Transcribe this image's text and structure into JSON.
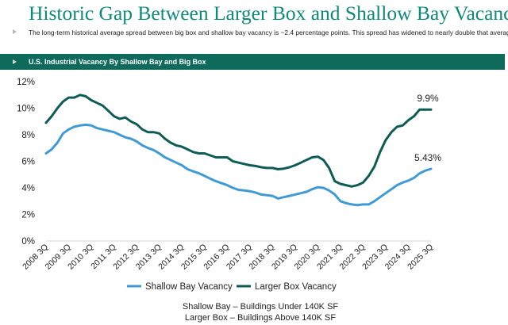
{
  "page": {
    "title": "Historic Gap Between Larger Box and Shallow Bay Vacancy",
    "subtitle": "The long-term historical average spread between big box and shallow bay vacancy is ~2.4 percentage points. This spread has widened to nearly double that average.",
    "chart_header": "U.S. Industrial Vacancy By Shallow Bay and Big Box",
    "footnotes": [
      "Shallow Bay – Buildings Under 140K SF",
      "Larger Box – Buildings Above 140K SF"
    ],
    "colors": {
      "title": "#0e8a7a",
      "header_bg": "#0e6b5c",
      "shallow_bay": "#3f9ad6",
      "larger_box": "#0e5c55"
    }
  },
  "chart_data": {
    "type": "line",
    "title": "U.S. Industrial Vacancy By Shallow Bay and Big Box",
    "xlabel": "",
    "ylabel": "",
    "ylim": [
      0,
      12
    ],
    "yticks": [
      0,
      2,
      4,
      6,
      8,
      10,
      12
    ],
    "ytick_labels": [
      "0%",
      "2%",
      "4%",
      "6%",
      "8%",
      "10%",
      "12%"
    ],
    "x_range": [
      2008.5,
      2025.5
    ],
    "x_tick_labels": [
      "2008 3Q",
      "2009 3Q",
      "2010 3Q",
      "2011 3Q",
      "2012 3Q",
      "2013 3Q",
      "2014 3Q",
      "2015 3Q",
      "2016 3Q",
      "2017 3Q",
      "2018 3Q",
      "2019 3Q",
      "2020 3Q",
      "2021 3Q",
      "2022 3Q",
      "2023 3Q",
      "2024 3Q",
      "2025 3Q"
    ],
    "grid": false,
    "legend": "bottom",
    "annotations": [
      {
        "series": "Larger Box Vacancy",
        "label": "9.9%",
        "x": 2025.5,
        "y": 9.9
      },
      {
        "series": "Shallow Bay Vacancy",
        "label": "5.43%",
        "x": 2025.5,
        "y": 5.43
      }
    ],
    "series": [
      {
        "name": "Shallow Bay Vacancy",
        "color": "#3f9ad6",
        "points": [
          [
            2008.5,
            6.6
          ],
          [
            2008.75,
            6.9
          ],
          [
            2009.0,
            7.4
          ],
          [
            2009.25,
            8.1
          ],
          [
            2009.5,
            8.4
          ],
          [
            2009.75,
            8.6
          ],
          [
            2010.0,
            8.7
          ],
          [
            2010.25,
            8.75
          ],
          [
            2010.5,
            8.7
          ],
          [
            2010.75,
            8.5
          ],
          [
            2011.0,
            8.4
          ],
          [
            2011.25,
            8.3
          ],
          [
            2011.5,
            8.2
          ],
          [
            2011.75,
            8.0
          ],
          [
            2012.0,
            7.8
          ],
          [
            2012.25,
            7.7
          ],
          [
            2012.5,
            7.5
          ],
          [
            2012.75,
            7.2
          ],
          [
            2013.0,
            7.0
          ],
          [
            2013.25,
            6.85
          ],
          [
            2013.5,
            6.6
          ],
          [
            2013.75,
            6.3
          ],
          [
            2014.0,
            6.1
          ],
          [
            2014.25,
            5.9
          ],
          [
            2014.5,
            5.7
          ],
          [
            2014.75,
            5.4
          ],
          [
            2015.0,
            5.25
          ],
          [
            2015.25,
            5.1
          ],
          [
            2015.5,
            4.9
          ],
          [
            2015.75,
            4.7
          ],
          [
            2016.0,
            4.5
          ],
          [
            2016.25,
            4.35
          ],
          [
            2016.5,
            4.2
          ],
          [
            2016.75,
            4.0
          ],
          [
            2017.0,
            3.85
          ],
          [
            2017.25,
            3.8
          ],
          [
            2017.5,
            3.75
          ],
          [
            2017.75,
            3.65
          ],
          [
            2018.0,
            3.5
          ],
          [
            2018.25,
            3.45
          ],
          [
            2018.5,
            3.4
          ],
          [
            2018.75,
            3.2
          ],
          [
            2019.0,
            3.3
          ],
          [
            2019.25,
            3.4
          ],
          [
            2019.5,
            3.5
          ],
          [
            2019.75,
            3.6
          ],
          [
            2020.0,
            3.7
          ],
          [
            2020.25,
            3.9
          ],
          [
            2020.5,
            4.05
          ],
          [
            2020.75,
            4.0
          ],
          [
            2021.0,
            3.8
          ],
          [
            2021.25,
            3.5
          ],
          [
            2021.5,
            3.0
          ],
          [
            2021.75,
            2.85
          ],
          [
            2022.0,
            2.75
          ],
          [
            2022.25,
            2.7
          ],
          [
            2022.5,
            2.75
          ],
          [
            2022.75,
            2.75
          ],
          [
            2023.0,
            3.0
          ],
          [
            2023.25,
            3.3
          ],
          [
            2023.5,
            3.6
          ],
          [
            2023.75,
            3.9
          ],
          [
            2024.0,
            4.2
          ],
          [
            2024.25,
            4.4
          ],
          [
            2024.5,
            4.55
          ],
          [
            2024.75,
            4.75
          ],
          [
            2025.0,
            5.1
          ],
          [
            2025.25,
            5.3
          ],
          [
            2025.5,
            5.43
          ]
        ]
      },
      {
        "name": "Larger Box Vacancy",
        "color": "#0e5c55",
        "points": [
          [
            2008.5,
            8.9
          ],
          [
            2008.75,
            9.4
          ],
          [
            2009.0,
            10.0
          ],
          [
            2009.25,
            10.5
          ],
          [
            2009.5,
            10.8
          ],
          [
            2009.75,
            10.8
          ],
          [
            2010.0,
            11.0
          ],
          [
            2010.25,
            10.9
          ],
          [
            2010.5,
            10.6
          ],
          [
            2010.75,
            10.4
          ],
          [
            2011.0,
            10.2
          ],
          [
            2011.25,
            9.8
          ],
          [
            2011.5,
            9.4
          ],
          [
            2011.75,
            9.2
          ],
          [
            2012.0,
            9.3
          ],
          [
            2012.25,
            9.0
          ],
          [
            2012.5,
            8.8
          ],
          [
            2012.75,
            8.4
          ],
          [
            2013.0,
            8.2
          ],
          [
            2013.25,
            8.2
          ],
          [
            2013.5,
            8.1
          ],
          [
            2013.75,
            7.7
          ],
          [
            2014.0,
            7.4
          ],
          [
            2014.25,
            7.2
          ],
          [
            2014.5,
            7.1
          ],
          [
            2014.75,
            6.9
          ],
          [
            2015.0,
            6.7
          ],
          [
            2015.25,
            6.6
          ],
          [
            2015.5,
            6.6
          ],
          [
            2015.75,
            6.45
          ],
          [
            2016.0,
            6.3
          ],
          [
            2016.25,
            6.3
          ],
          [
            2016.5,
            6.3
          ],
          [
            2016.75,
            6.0
          ],
          [
            2017.0,
            5.9
          ],
          [
            2017.25,
            5.8
          ],
          [
            2017.5,
            5.7
          ],
          [
            2017.75,
            5.65
          ],
          [
            2018.0,
            5.55
          ],
          [
            2018.25,
            5.5
          ],
          [
            2018.5,
            5.5
          ],
          [
            2018.75,
            5.4
          ],
          [
            2019.0,
            5.45
          ],
          [
            2019.25,
            5.55
          ],
          [
            2019.5,
            5.7
          ],
          [
            2019.75,
            5.9
          ],
          [
            2020.0,
            6.1
          ],
          [
            2020.25,
            6.3
          ],
          [
            2020.5,
            6.35
          ],
          [
            2020.75,
            6.1
          ],
          [
            2021.0,
            5.5
          ],
          [
            2021.25,
            4.5
          ],
          [
            2021.5,
            4.3
          ],
          [
            2021.75,
            4.2
          ],
          [
            2022.0,
            4.1
          ],
          [
            2022.25,
            4.2
          ],
          [
            2022.5,
            4.4
          ],
          [
            2022.75,
            4.9
          ],
          [
            2023.0,
            5.6
          ],
          [
            2023.25,
            6.7
          ],
          [
            2023.5,
            7.6
          ],
          [
            2023.75,
            8.2
          ],
          [
            2024.0,
            8.6
          ],
          [
            2024.25,
            8.7
          ],
          [
            2024.5,
            9.1
          ],
          [
            2024.75,
            9.4
          ],
          [
            2025.0,
            9.9
          ],
          [
            2025.25,
            9.9
          ],
          [
            2025.5,
            9.9
          ]
        ]
      }
    ]
  }
}
